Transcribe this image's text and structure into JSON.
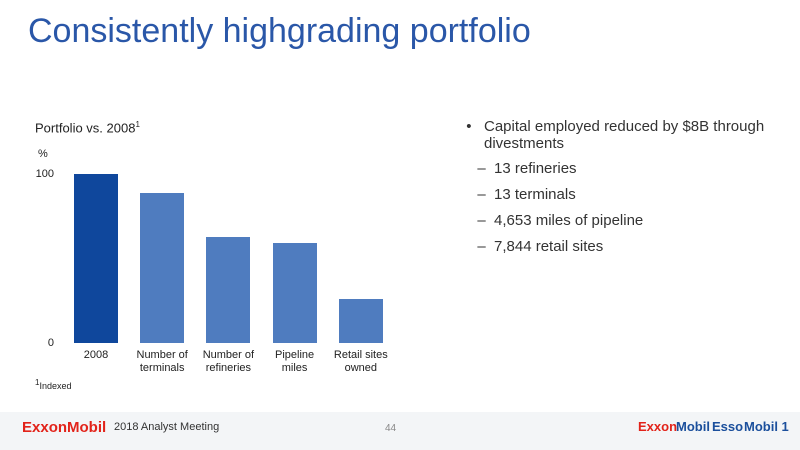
{
  "title": "Consistently highgrading portfolio",
  "chart_data": {
    "type": "bar",
    "title": "Portfolio vs. 2008",
    "title_footnote": "1",
    "y_label": "%",
    "categories": [
      "2008",
      "Number of terminals",
      "Number of refineries",
      "Pipeline miles",
      "Retail sites owned"
    ],
    "values": [
      100,
      89,
      63,
      59,
      26
    ],
    "colors": [
      "#0f479c",
      "#4f7cbf",
      "#4f7cbf",
      "#4f7cbf",
      "#4f7cbf"
    ],
    "ylim": [
      0,
      100
    ],
    "yticks": [
      0,
      100
    ],
    "footnote_marker": "1",
    "footnote": "Indexed"
  },
  "bullets": {
    "main": "Capital employed reduced by $8B through divestments",
    "sub": [
      "13 refineries",
      "13 terminals",
      "4,653 miles of pipeline",
      "7,844 retail sites"
    ]
  },
  "footer": {
    "brand": "ExxonMobil",
    "event": "2018 Analyst Meeting",
    "page": "44",
    "logos": [
      "Exxon",
      "Mobil",
      "Esso",
      "Mobil 1"
    ]
  }
}
